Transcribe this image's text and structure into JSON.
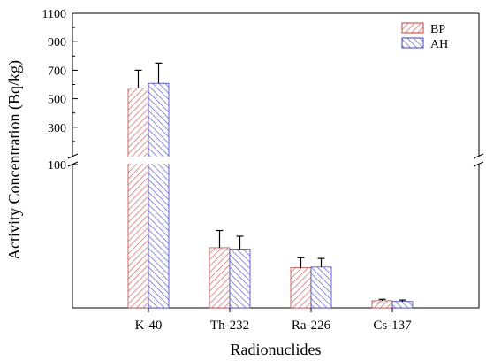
{
  "chart_data": {
    "type": "bar",
    "title": "",
    "xlabel": "Radionuclides",
    "ylabel": "Activity Concentration (Bq/kg)",
    "categories": [
      "K-40",
      "Th-232",
      "Ra-226",
      "Cs-137"
    ],
    "series": [
      {
        "name": "BP",
        "color": "#e07070",
        "values": [
          575,
          42,
          28,
          5
        ],
        "errors": [
          125,
          12,
          7,
          1
        ]
      },
      {
        "name": "AH",
        "color": "#7070e0",
        "values": [
          608,
          41,
          28.5,
          4.5
        ],
        "errors": [
          142,
          9,
          6,
          1
        ]
      }
    ],
    "y_ticks_upper": [
      "1100",
      "900",
      "700",
      "500",
      "300"
    ],
    "y_tick_break": "100",
    "y_axis_break": true,
    "lower_segment_ylim": [
      0,
      100
    ],
    "upper_segment_ylim": [
      100,
      1100
    ],
    "legend_position": "top-right",
    "grid": false,
    "bar_pattern": "diagonal-hatch"
  }
}
